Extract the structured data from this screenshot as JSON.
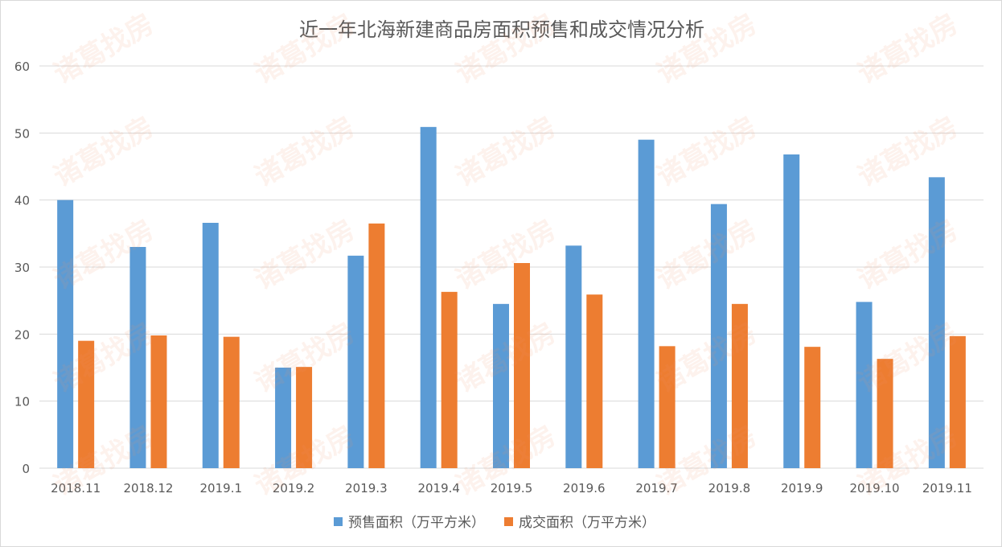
{
  "watermark": "诸葛找房",
  "chart_data": {
    "type": "bar",
    "title": "近一年北海新建商品房面积预售和成交情况分析",
    "categories": [
      "2018.11",
      "2018.12",
      "2019.1",
      "2019.2",
      "2019.3",
      "2019.4",
      "2019.5",
      "2019.6",
      "2019.7",
      "2019.8",
      "2019.9",
      "2019.10",
      "2019.11"
    ],
    "series": [
      {
        "name": "预售面积（万平方米）",
        "color": "#5B9BD5",
        "values": [
          40.0,
          33.0,
          36.6,
          15.0,
          31.7,
          50.9,
          24.5,
          33.2,
          49.0,
          39.4,
          46.8,
          24.8,
          43.4
        ]
      },
      {
        "name": "成交面积（万平方米）",
        "color": "#ED7D31",
        "values": [
          19.0,
          19.8,
          19.6,
          15.1,
          36.5,
          26.3,
          30.6,
          25.9,
          18.2,
          24.5,
          18.1,
          16.3,
          19.7
        ]
      }
    ],
    "ylim": [
      0,
      60
    ],
    "yticks": [
      0,
      10,
      20,
      30,
      40,
      50,
      60
    ],
    "grid": true,
    "legend": "bottom",
    "xlabel": "",
    "ylabel": ""
  }
}
